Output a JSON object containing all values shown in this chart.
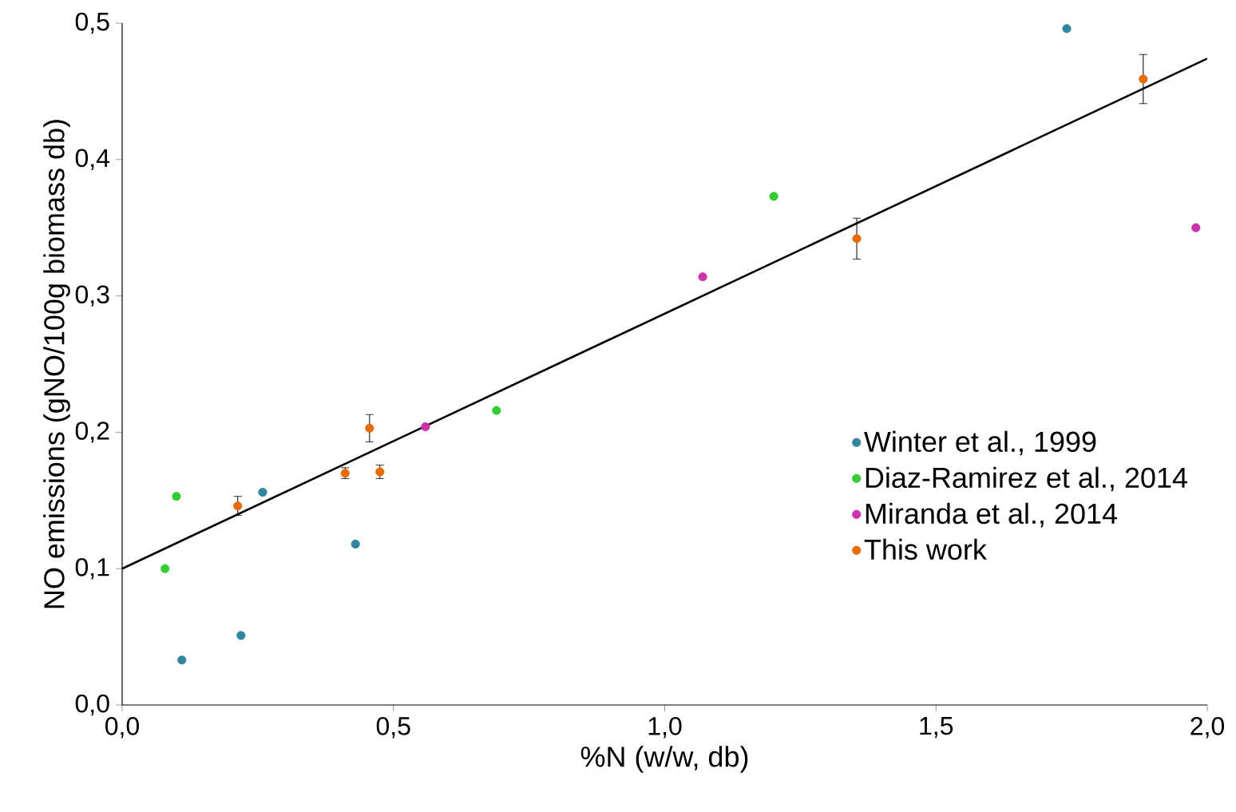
{
  "chart_data": {
    "type": "scatter",
    "xlabel": "%N (w/w, db)",
    "ylabel": "NO emissions (gNO/100g biomass db)",
    "xlim": [
      0,
      2.0
    ],
    "ylim": [
      0,
      0.5
    ],
    "xticks": [
      {
        "value": 0,
        "label": "0,0"
      },
      {
        "value": 0.5,
        "label": "0,5"
      },
      {
        "value": 1.0,
        "label": "1,0"
      },
      {
        "value": 1.5,
        "label": "1,5"
      },
      {
        "value": 2.0,
        "label": "2,0"
      }
    ],
    "yticks": [
      {
        "value": 0,
        "label": "0,0"
      },
      {
        "value": 0.1,
        "label": "0,1"
      },
      {
        "value": 0.2,
        "label": "0,2"
      },
      {
        "value": 0.3,
        "label": "0,3"
      },
      {
        "value": 0.4,
        "label": "0,4"
      },
      {
        "value": 0.5,
        "label": "0,5"
      }
    ],
    "grid": false,
    "legend": "bottom right",
    "series": [
      {
        "name": "Winter et al., 1999",
        "marker": "circle",
        "color": "#31859c",
        "x": [
          0.11,
          0.219,
          0.259,
          0.43,
          1.741
        ],
        "values": [
          0.033,
          0.051,
          0.156,
          0.118,
          0.496
        ]
      },
      {
        "name": "Diaz-Ramirez et al., 2014",
        "marker": "circle",
        "color": "#33cc33",
        "x": [
          0.079,
          0.1,
          0.69,
          1.201
        ],
        "values": [
          0.1,
          0.153,
          0.216,
          0.373
        ]
      },
      {
        "name": "Miranda et al., 2014",
        "marker": "circle",
        "color": "#cc33aa",
        "x": [
          0.559,
          1.07,
          1.979
        ],
        "values": [
          0.204,
          0.314,
          0.35
        ]
      },
      {
        "name": "This work",
        "marker": "circle",
        "color": "#e46c0a",
        "x": [
          0.213,
          0.411,
          0.456,
          0.475,
          1.354,
          1.882
        ],
        "values": [
          0.146,
          0.17,
          0.203,
          0.171,
          0.342,
          0.459
        ],
        "errors": [
          0.007,
          0.004,
          0.01,
          0.005,
          0.015,
          0.018
        ]
      },
      {
        "type": "line",
        "marker": "none",
        "color": "#000000",
        "x": [
          0,
          2.0
        ],
        "values": [
          0.1,
          0.474
        ]
      }
    ]
  }
}
